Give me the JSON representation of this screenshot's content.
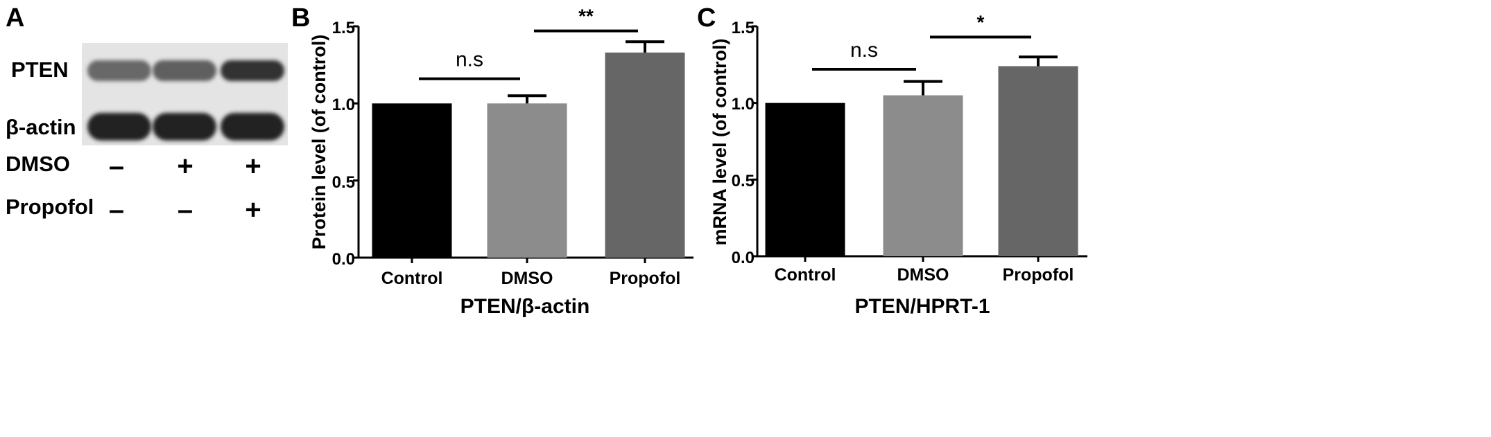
{
  "panels": {
    "a": {
      "letter": "A",
      "band_labels": [
        "PTEN",
        "β-actin"
      ],
      "treatments": [
        {
          "label": "DMSO",
          "marks": [
            "–",
            "+",
            "+"
          ]
        },
        {
          "label": "Propofol",
          "marks": [
            "–",
            "–",
            "+"
          ]
        }
      ],
      "band_intensity": {
        "PTEN": [
          0.55,
          0.6,
          0.85
        ],
        "β-actin": [
          0.95,
          0.95,
          0.95
        ]
      }
    }
  },
  "chart_data": [
    {
      "letter": "B",
      "type": "bar",
      "categories": [
        "Control",
        "DMSO",
        "Propofol"
      ],
      "values": [
        1.0,
        1.0,
        1.33
      ],
      "errors": [
        0,
        0.05,
        0.07
      ],
      "colors": [
        "#000000",
        "#8c8c8c",
        "#666666"
      ],
      "ylabel": "Protein level (of control)",
      "xlabel": "PTEN/β-actin",
      "ylim": [
        0,
        1.5
      ],
      "yticks": [
        0.0,
        0.5,
        1.0,
        1.5
      ],
      "ytick_labels": [
        "0.0",
        "0.5",
        "1.0",
        "1.5"
      ],
      "significance": [
        {
          "from": 0,
          "to": 1,
          "label": "n.s",
          "level": 1.16
        },
        {
          "from": 1,
          "to": 2,
          "label": "**",
          "level": 1.47
        }
      ]
    },
    {
      "letter": "C",
      "type": "bar",
      "categories": [
        "Control",
        "DMSO",
        "Propofol"
      ],
      "values": [
        1.0,
        1.05,
        1.24
      ],
      "errors": [
        0,
        0.09,
        0.06
      ],
      "colors": [
        "#000000",
        "#8c8c8c",
        "#666666"
      ],
      "ylabel": "mRNA level (of control)",
      "xlabel": "PTEN/HPRT-1",
      "ylim": [
        0,
        1.5
      ],
      "yticks": [
        0.0,
        0.5,
        1.0,
        1.5
      ],
      "ytick_labels": [
        "0.0",
        "0.5",
        "1.0",
        "1.5"
      ],
      "significance": [
        {
          "from": 0,
          "to": 1,
          "label": "n.s",
          "level": 1.22
        },
        {
          "from": 1,
          "to": 2,
          "label": "*",
          "level": 1.43
        }
      ]
    }
  ]
}
